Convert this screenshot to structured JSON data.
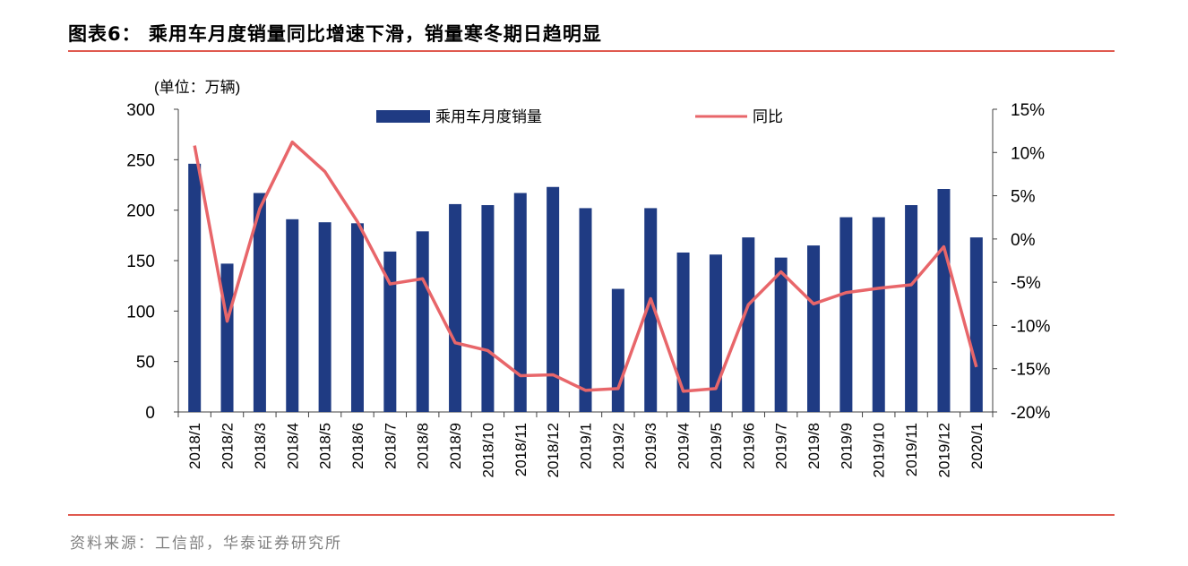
{
  "title": "图表6： 乘用车月度销量同比增速下滑，销量寒冬期日趋明显",
  "source": "资料来源：工信部，华泰证券研究所",
  "colors": {
    "bar": "#1f3b83",
    "line": "#e8666a",
    "rule": "#e05a4f",
    "axis": "#404040"
  },
  "chart_data": {
    "type": "bar",
    "unit_label": "(单位：万辆)",
    "categories": [
      "2018/1",
      "2018/2",
      "2018/3",
      "2018/4",
      "2018/5",
      "2018/6",
      "2018/7",
      "2018/8",
      "2018/9",
      "2018/10",
      "2018/11",
      "2018/12",
      "2019/1",
      "2019/2",
      "2019/3",
      "2019/4",
      "2019/5",
      "2019/6",
      "2019/7",
      "2019/8",
      "2019/9",
      "2019/10",
      "2019/11",
      "2019/12",
      "2020/1"
    ],
    "series": [
      {
        "name": "乘用车月度销量",
        "type": "bar",
        "axis": "left",
        "values": [
          246,
          147,
          217,
          191,
          188,
          187,
          159,
          179,
          206,
          205,
          217,
          223,
          202,
          122,
          202,
          158,
          156,
          173,
          153,
          165,
          193,
          193,
          205,
          221,
          173
        ]
      },
      {
        "name": "同比",
        "type": "line",
        "axis": "right",
        "values": [
          10.8,
          -9.5,
          3.5,
          11.2,
          7.8,
          2.0,
          -5.2,
          -4.6,
          -12.0,
          -12.9,
          -15.8,
          -15.7,
          -17.5,
          -17.3,
          -6.9,
          -17.6,
          -17.3,
          -7.6,
          -3.8,
          -7.5,
          -6.2,
          -5.7,
          -5.3,
          -0.9,
          -14.8
        ]
      }
    ],
    "ylim_left": [
      0,
      300
    ],
    "yticks_left": [
      "0",
      "50",
      "100",
      "150",
      "200",
      "250",
      "300"
    ],
    "ylim_right": [
      -20,
      15
    ],
    "yticks_right": [
      "-20%",
      "-15%",
      "-10%",
      "-5%",
      "0%",
      "5%",
      "10%",
      "15%"
    ],
    "grid": false,
    "legend_position": "top"
  }
}
